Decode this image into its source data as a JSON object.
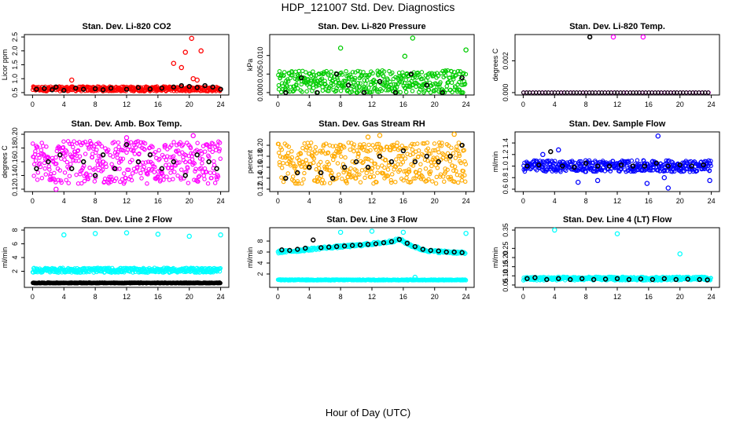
{
  "figure": {
    "title": "HDP_121007  Std. Dev. Diagnostics",
    "xlabel": "Hour of Day (UTC)"
  },
  "chart_data": [
    {
      "type": "scatter",
      "title": "Stan. Dev. Li-820 CO2",
      "ylabel": "Licor ppm",
      "xlim": [
        0,
        24
      ],
      "ylim": [
        0.5,
        2.5
      ],
      "xticks": [
        "0",
        "4",
        "8",
        "12",
        "16",
        "20",
        "24"
      ],
      "yticks": [
        "0.5",
        "1.0",
        "1.5",
        "2.0",
        "2.5"
      ],
      "grid": false,
      "series": [
        {
          "color": "#ff0000",
          "values_desc": "dense",
          "band": [
            0.55,
            0.72
          ],
          "points": [
            [
              5.0,
              0.95
            ],
            [
              18.0,
              1.55
            ],
            [
              19.5,
              1.95
            ],
            [
              20.3,
              2.45
            ],
            [
              21.5,
              2.0
            ],
            [
              19.0,
              1.4
            ],
            [
              20.5,
              1.0
            ],
            [
              21.0,
              0.95
            ]
          ]
        },
        {
          "color": "#000000",
          "points": [
            [
              0.5,
              0.62
            ],
            [
              1.5,
              0.65
            ],
            [
              2.5,
              0.6
            ],
            [
              3.0,
              0.7
            ],
            [
              4.0,
              0.58
            ],
            [
              5.5,
              0.66
            ],
            [
              6.5,
              0.62
            ],
            [
              8.0,
              0.64
            ],
            [
              9.0,
              0.6
            ],
            [
              10.0,
              0.66
            ],
            [
              12.0,
              0.62
            ],
            [
              13.5,
              0.68
            ],
            [
              15.0,
              0.63
            ],
            [
              16.5,
              0.66
            ],
            [
              18.0,
              0.7
            ],
            [
              19.0,
              0.75
            ],
            [
              20.0,
              0.72
            ],
            [
              21.0,
              0.68
            ],
            [
              22.0,
              0.75
            ],
            [
              23.0,
              0.7
            ],
            [
              24.0,
              0.62
            ]
          ]
        }
      ]
    },
    {
      "type": "scatter",
      "title": "Stan. Dev. Li-820 Pressure",
      "ylabel": "kPa",
      "xlim": [
        0,
        24
      ],
      "ylim": [
        0,
        0.015
      ],
      "xticks": [
        "0",
        "4",
        "8",
        "12",
        "16",
        "20",
        "24"
      ],
      "yticks": [
        "0.000",
        "0.005",
        "0.010"
      ],
      "grid": false,
      "series": [
        {
          "color": "#00cc00",
          "band": [
            0,
            0.006
          ],
          "points": [
            [
              8.0,
              0.012
            ],
            [
              17.2,
              0.0147
            ],
            [
              16.2,
              0.0098
            ],
            [
              24.0,
              0.0115
            ]
          ]
        },
        {
          "color": "#000000",
          "points": [
            [
              1.0,
              0.0
            ],
            [
              3.0,
              0.004
            ],
            [
              5.0,
              0.0
            ],
            [
              7.5,
              0.005
            ],
            [
              9.0,
              0.002
            ],
            [
              11.0,
              0.0
            ],
            [
              13.0,
              0.003
            ],
            [
              15.0,
              0.0
            ],
            [
              17.0,
              0.005
            ],
            [
              19.0,
              0.002
            ],
            [
              21.0,
              0.0
            ],
            [
              23.5,
              0.004
            ]
          ]
        }
      ]
    },
    {
      "type": "scatter",
      "title": "Stan. Dev. Li-820 Temp.",
      "ylabel": "degrees C",
      "xlim": [
        0,
        24
      ],
      "ylim": [
        0,
        0.0035
      ],
      "xticks": [
        "0",
        "4",
        "8",
        "12",
        "16",
        "20",
        "24"
      ],
      "yticks": [
        "0.000",
        "0.002"
      ],
      "grid": false,
      "series": [
        {
          "color": "#ff00ff",
          "band": [
            0,
            0
          ],
          "points": [
            [
              11.5,
              0.0035
            ],
            [
              15.3,
              0.0035
            ]
          ]
        },
        {
          "color": "#000000",
          "band": [
            0,
            0
          ],
          "points": [
            [
              8.5,
              0.0035
            ]
          ]
        }
      ]
    },
    {
      "type": "scatter",
      "title": "Stan. Dev. Amb. Box Temp.",
      "ylabel": "degrees C",
      "xlim": [
        0,
        24
      ],
      "ylim": [
        0.12,
        0.2
      ],
      "xticks": [
        "0",
        "4",
        "8",
        "12",
        "16",
        "20",
        "24"
      ],
      "yticks": [
        "0.12",
        "0.14",
        "0.16",
        "0.18",
        "0.20"
      ],
      "grid": false,
      "series": [
        {
          "color": "#ff00ff",
          "band": [
            0.128,
            0.19
          ],
          "points": [
            [
              12.0,
              0.195
            ],
            [
              20.5,
              0.198
            ],
            [
              3.0,
              0.12
            ]
          ]
        },
        {
          "color": "#000000",
          "points": [
            [
              0.5,
              0.15
            ],
            [
              2.0,
              0.16
            ],
            [
              3.5,
              0.17
            ],
            [
              5.0,
              0.15
            ],
            [
              6.5,
              0.16
            ],
            [
              8.0,
              0.14
            ],
            [
              9.0,
              0.17
            ],
            [
              10.5,
              0.15
            ],
            [
              12.0,
              0.185
            ],
            [
              13.5,
              0.16
            ],
            [
              15.0,
              0.17
            ],
            [
              16.5,
              0.15
            ],
            [
              18.0,
              0.16
            ],
            [
              19.5,
              0.14
            ],
            [
              21.0,
              0.17
            ],
            [
              22.5,
              0.16
            ],
            [
              23.5,
              0.15
            ]
          ]
        }
      ]
    },
    {
      "type": "scatter",
      "title": "Stan. Dev. Gas Stream RH",
      "ylabel": "percent",
      "xlim": [
        0,
        24
      ],
      "ylim": [
        0.12,
        0.22
      ],
      "xticks": [
        "0",
        "4",
        "8",
        "12",
        "16",
        "20",
        "24"
      ],
      "yticks": [
        "0.12",
        "0.14",
        "0.16",
        "0.18",
        "0.20"
      ],
      "grid": false,
      "series": [
        {
          "color": "#ffaa00",
          "band": [
            0.13,
            0.205
          ],
          "points": [
            [
              11.5,
              0.215
            ],
            [
              13.0,
              0.218
            ],
            [
              22.5,
              0.22
            ]
          ]
        },
        {
          "color": "#000000",
          "points": [
            [
              1.0,
              0.14
            ],
            [
              2.5,
              0.15
            ],
            [
              4.0,
              0.16
            ],
            [
              5.5,
              0.15
            ],
            [
              7.0,
              0.14
            ],
            [
              8.5,
              0.16
            ],
            [
              10.0,
              0.17
            ],
            [
              11.5,
              0.16
            ],
            [
              13.0,
              0.18
            ],
            [
              14.5,
              0.17
            ],
            [
              16.0,
              0.19
            ],
            [
              17.5,
              0.17
            ],
            [
              19.0,
              0.18
            ],
            [
              20.5,
              0.17
            ],
            [
              22.0,
              0.18
            ],
            [
              23.5,
              0.2
            ]
          ]
        }
      ]
    },
    {
      "type": "scatter",
      "title": "Stan. Dev. Sample Flow",
      "ylabel": "ml/min",
      "xlim": [
        0,
        24
      ],
      "ylim": [
        0.6,
        1.55
      ],
      "xticks": [
        "0",
        "4",
        "8",
        "12",
        "16",
        "20",
        "24"
      ],
      "yticks": [
        "0.6",
        "0.8",
        "1.0",
        "1.2",
        "1.4"
      ],
      "grid": false,
      "series": [
        {
          "color": "#0000ff",
          "band": [
            0.9,
            1.1
          ],
          "points": [
            [
              17.2,
              1.52
            ],
            [
              4.5,
              1.28
            ],
            [
              2.5,
              1.2
            ],
            [
              7.0,
              0.72
            ],
            [
              9.5,
              0.75
            ],
            [
              15.8,
              0.7
            ],
            [
              18.5,
              0.62
            ],
            [
              23.8,
              0.75
            ],
            [
              18.0,
              0.8
            ]
          ]
        },
        {
          "color": "#000000",
          "points": [
            [
              0.5,
              1.0
            ],
            [
              2.0,
              1.02
            ],
            [
              3.5,
              1.25
            ],
            [
              5.0,
              1.0
            ],
            [
              6.5,
              0.98
            ],
            [
              8.0,
              1.05
            ],
            [
              9.5,
              1.0
            ],
            [
              11.0,
              1.0
            ],
            [
              12.5,
              1.02
            ],
            [
              14.0,
              1.0
            ],
            [
              15.5,
              1.0
            ],
            [
              17.0,
              1.05
            ],
            [
              18.5,
              1.0
            ],
            [
              20.0,
              1.02
            ],
            [
              21.5,
              1.0
            ],
            [
              23.0,
              1.02
            ]
          ]
        }
      ]
    },
    {
      "type": "scatter",
      "title": "Stan. Dev. Line 2 Flow",
      "ylabel": "ml/min",
      "xlim": [
        0,
        24
      ],
      "ylim": [
        0,
        8
      ],
      "xticks": [
        "0",
        "4",
        "8",
        "12",
        "16",
        "20",
        "24"
      ],
      "yticks": [
        "2",
        "4",
        "6",
        "8"
      ],
      "grid": false,
      "series": [
        {
          "color": "#00ffff",
          "band": [
            1.8,
            2.5
          ],
          "points": [
            [
              4.0,
              7.3
            ],
            [
              8.0,
              7.5
            ],
            [
              12.0,
              7.6
            ],
            [
              16.0,
              7.4
            ],
            [
              20.0,
              7.1
            ],
            [
              24.0,
              7.3
            ]
          ]
        },
        {
          "color": "#000000",
          "band": [
            0.25,
            0.35
          ],
          "points": []
        }
      ]
    },
    {
      "type": "scatter",
      "title": "Stan. Dev. Line 3 Flow",
      "ylabel": "ml/min",
      "xlim": [
        0,
        24
      ],
      "ylim": [
        0,
        10
      ],
      "xticks": [
        "0",
        "4",
        "8",
        "12",
        "16",
        "20",
        "24"
      ],
      "yticks": [
        "2",
        "4",
        "6",
        "8"
      ],
      "grid": false,
      "series": [
        {
          "color": "#00ffff",
          "band": [
            0.85,
            1.0
          ],
          "points": [
            [
              8.0,
              9.6
            ],
            [
              12.0,
              9.8
            ],
            [
              16.0,
              9.6
            ],
            [
              24.0,
              9.4
            ],
            [
              17.5,
              1.4
            ]
          ]
        },
        {
          "color": "#00ffff",
          "curve": true,
          "points": [
            [
              0,
              6.0
            ],
            [
              2,
              6.2
            ],
            [
              4,
              6.5
            ],
            [
              6,
              6.8
            ],
            [
              8,
              7.0
            ],
            [
              10,
              7.2
            ],
            [
              12,
              7.5
            ],
            [
              14,
              7.8
            ],
            [
              15.5,
              8.3
            ],
            [
              17,
              7.2
            ],
            [
              18.5,
              6.4
            ],
            [
              20,
              6.1
            ],
            [
              22,
              6.0
            ],
            [
              24,
              5.8
            ]
          ]
        },
        {
          "color": "#000000",
          "points": [
            [
              0.5,
              6.4
            ],
            [
              1.5,
              6.3
            ],
            [
              2.5,
              6.5
            ],
            [
              3.5,
              6.7
            ],
            [
              4.5,
              8.2
            ],
            [
              5.5,
              6.8
            ],
            [
              6.5,
              6.9
            ],
            [
              7.5,
              7.0
            ],
            [
              8.5,
              7.1
            ],
            [
              9.5,
              7.2
            ],
            [
              10.5,
              7.3
            ],
            [
              11.5,
              7.4
            ],
            [
              12.5,
              7.5
            ],
            [
              13.5,
              7.7
            ],
            [
              14.5,
              7.9
            ],
            [
              15.5,
              8.3
            ],
            [
              16.5,
              7.6
            ],
            [
              17.5,
              7.0
            ],
            [
              18.5,
              6.5
            ],
            [
              19.5,
              6.3
            ],
            [
              20.5,
              6.2
            ],
            [
              21.5,
              6.0
            ],
            [
              22.5,
              6.0
            ],
            [
              23.5,
              5.9
            ]
          ]
        }
      ]
    },
    {
      "type": "scatter",
      "title": "Stan. Dev. Line 4 (LT) Flow",
      "ylabel": "ml/min",
      "xlim": [
        0,
        24
      ],
      "ylim": [
        0.05,
        0.35
      ],
      "xticks": [
        "0",
        "4",
        "8",
        "12",
        "16",
        "20",
        "24"
      ],
      "yticks": [
        "0.05",
        "0.10",
        "0.15",
        "0.20",
        "0.25",
        "0.35"
      ],
      "grid": false,
      "series": [
        {
          "color": "#00ffff",
          "band": [
            0.075,
            0.095
          ],
          "points": [
            [
              4.0,
              0.35
            ],
            [
              12.0,
              0.33
            ],
            [
              20.0,
              0.22
            ]
          ]
        },
        {
          "color": "#000000",
          "points": [
            [
              0.5,
              0.085
            ],
            [
              1.5,
              0.09
            ],
            [
              3.0,
              0.08
            ],
            [
              4.5,
              0.085
            ],
            [
              6.0,
              0.08
            ],
            [
              7.5,
              0.085
            ],
            [
              9.0,
              0.08
            ],
            [
              10.5,
              0.082
            ],
            [
              12.0,
              0.085
            ],
            [
              13.5,
              0.08
            ],
            [
              15.0,
              0.083
            ],
            [
              16.5,
              0.08
            ],
            [
              18.0,
              0.085
            ],
            [
              19.5,
              0.08
            ],
            [
              21.0,
              0.082
            ],
            [
              22.5,
              0.08
            ],
            [
              23.5,
              0.078
            ]
          ]
        }
      ]
    }
  ]
}
